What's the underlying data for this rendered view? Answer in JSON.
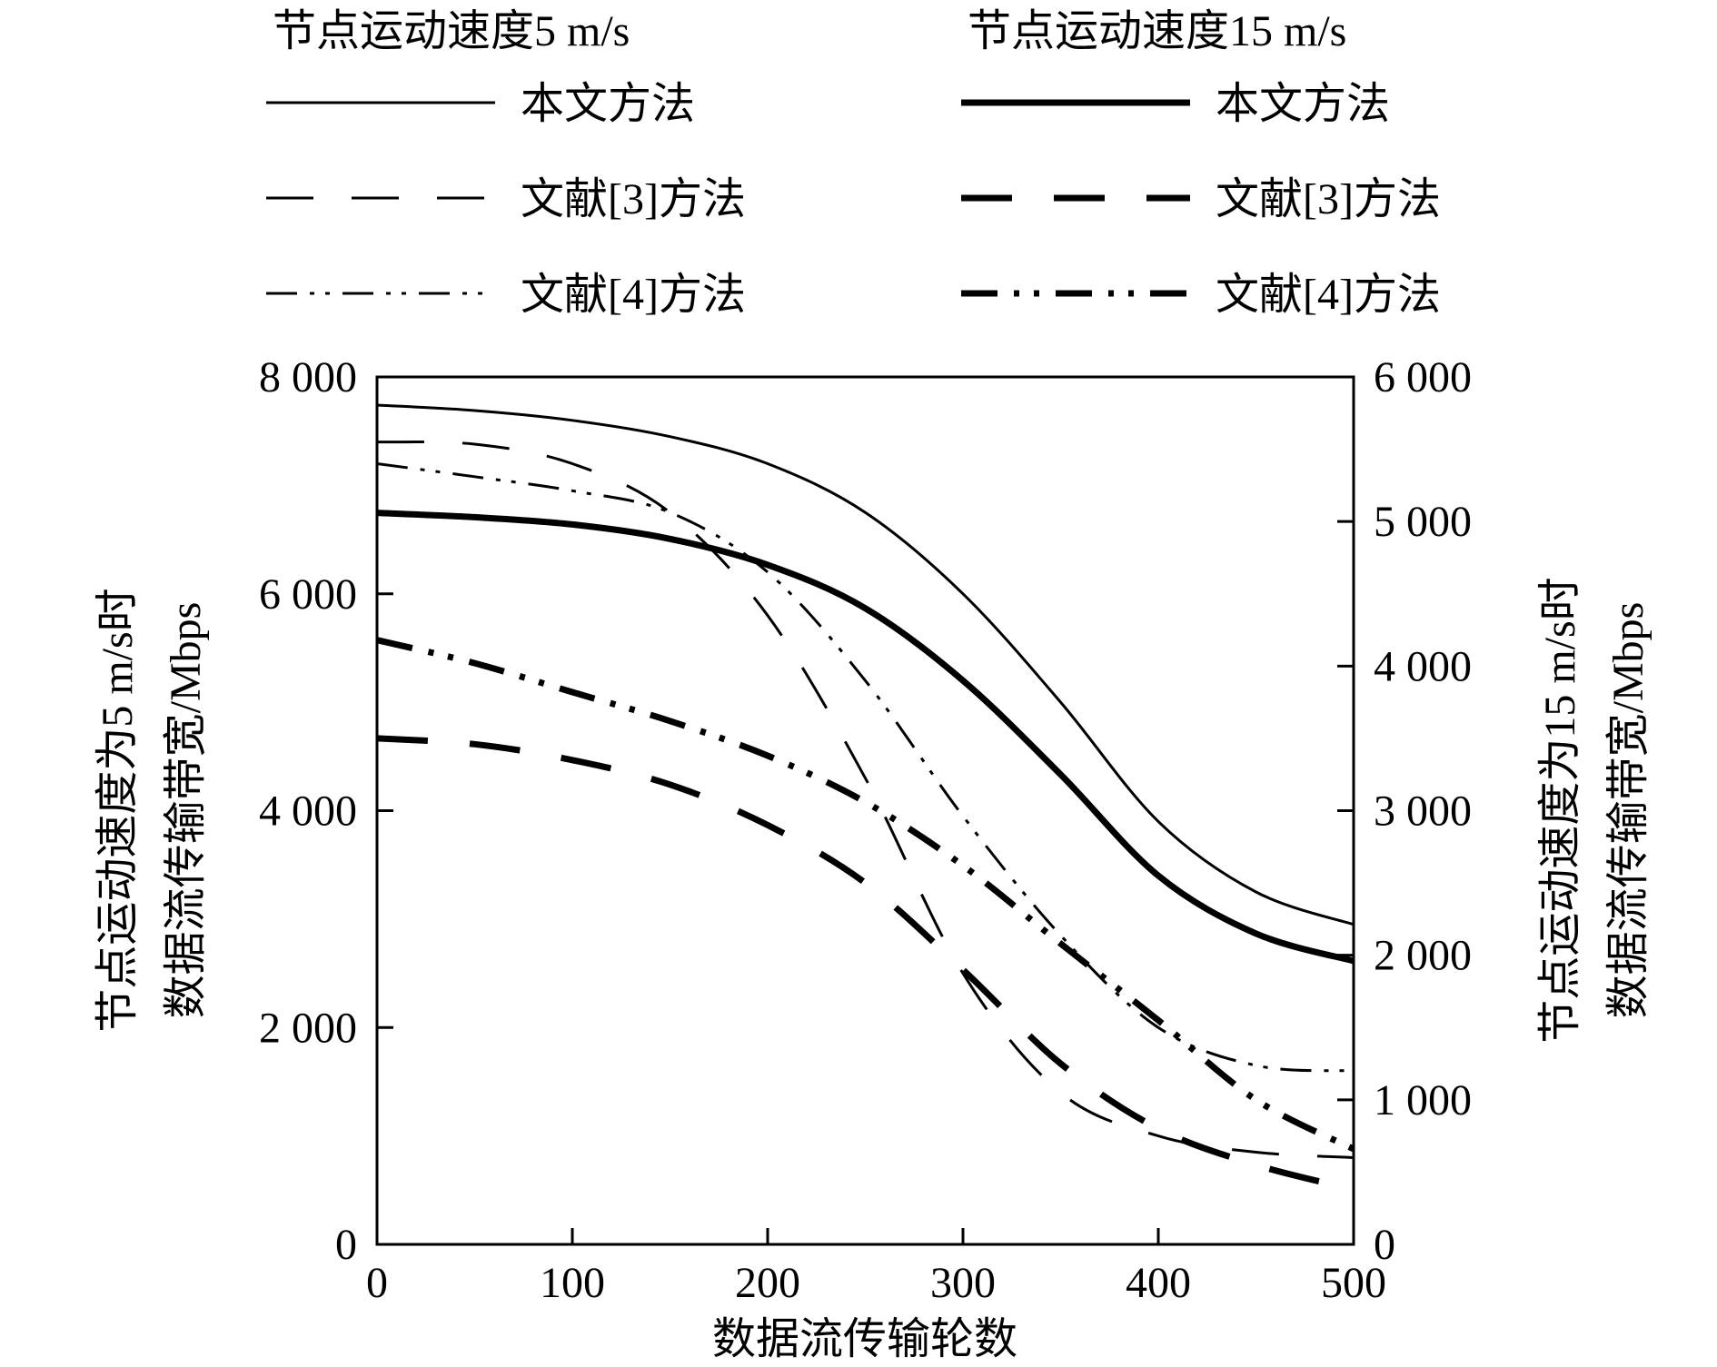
{
  "chart_data": {
    "type": "line",
    "title": "",
    "legend": {
      "groups": [
        {
          "title": "节点运动速度5 m/s",
          "position": "top-left",
          "entries": [
            "本文方法",
            "文献[3]方法",
            "文献[4]方法"
          ]
        },
        {
          "title": "节点运动速度15 m/s",
          "position": "top-right",
          "entries": [
            "本文方法",
            "文献[3]方法",
            "文献[4]方法"
          ]
        }
      ]
    },
    "xlabel": "数据流传输轮数",
    "ylabel_left_line1": "节点运动速度为5 m/s时",
    "ylabel_left_line2": "数据流传输带宽/Mbps",
    "ylabel_right_line1": "节点运动速度为15 m/s时",
    "ylabel_right_line2": "数据流传输带宽/Mbps",
    "xlim": [
      0,
      500
    ],
    "ylim_left": [
      0,
      8000
    ],
    "ylim_right": [
      0,
      6000
    ],
    "x_ticks": [
      0,
      100,
      200,
      300,
      400,
      500
    ],
    "x_tick_labels": [
      "0",
      "100",
      "200",
      "300",
      "400",
      "500"
    ],
    "y_ticks_left": [
      0,
      2000,
      4000,
      6000,
      8000
    ],
    "y_tick_labels_left": [
      "0",
      "2 000",
      "4 000",
      "6 000",
      "8 000"
    ],
    "y_ticks_right": [
      0,
      1000,
      2000,
      3000,
      4000,
      5000,
      6000
    ],
    "y_tick_labels_right": [
      "0",
      "1 000",
      "2 000",
      "3 000",
      "4 000",
      "5 000",
      "6 000"
    ],
    "grid": false,
    "series": [
      {
        "name": "本文方法",
        "group": "节点运动速度5 m/s",
        "axis": "left",
        "style": "solid",
        "weight": "thin",
        "x": [
          0,
          50,
          100,
          150,
          200,
          250,
          300,
          350,
          400,
          450,
          500
        ],
        "y": [
          7740,
          7690,
          7600,
          7450,
          7200,
          6750,
          6000,
          5000,
          3900,
          3250,
          2950
        ]
      },
      {
        "name": "文献[3]方法",
        "group": "节点运动速度5 m/s",
        "axis": "left",
        "style": "dashed",
        "weight": "thin",
        "x": [
          0,
          50,
          100,
          150,
          200,
          250,
          300,
          350,
          400,
          450,
          500
        ],
        "y": [
          7400,
          7380,
          7200,
          6750,
          5800,
          4300,
          2500,
          1400,
          1000,
          850,
          800
        ]
      },
      {
        "name": "文献[4]方法",
        "group": "节点运动速度5 m/s",
        "axis": "left",
        "style": "dash-dot-dot",
        "weight": "thin",
        "x": [
          0,
          50,
          100,
          150,
          200,
          250,
          300,
          350,
          400,
          450,
          500
        ],
        "y": [
          7200,
          7080,
          6950,
          6750,
          6200,
          5200,
          3950,
          2850,
          2000,
          1650,
          1600
        ]
      },
      {
        "name": "本文方法",
        "group": "节点运动速度15 m/s",
        "axis": "right",
        "style": "solid",
        "weight": "thick",
        "x": [
          0,
          50,
          100,
          150,
          200,
          250,
          300,
          350,
          400,
          450,
          500
        ],
        "y": [
          5060,
          5030,
          4980,
          4880,
          4700,
          4400,
          3900,
          3250,
          2550,
          2150,
          1960
        ]
      },
      {
        "name": "文献[3]方法",
        "group": "节点运动速度15 m/s",
        "axis": "right",
        "style": "dashed",
        "weight": "thick",
        "x": [
          0,
          50,
          100,
          150,
          200,
          250,
          300,
          350,
          400,
          450,
          500
        ],
        "y": [
          3500,
          3460,
          3350,
          3180,
          2900,
          2500,
          1900,
          1250,
          800,
          550,
          380
        ]
      },
      {
        "name": "文献[4]方法",
        "group": "节点运动速度15 m/s",
        "axis": "right",
        "style": "dash-dot-dot",
        "weight": "thick",
        "x": [
          0,
          50,
          100,
          150,
          200,
          250,
          300,
          350,
          400,
          450,
          500
        ],
        "y": [
          4180,
          4020,
          3820,
          3620,
          3380,
          3060,
          2620,
          2080,
          1550,
          1000,
          660
        ]
      }
    ]
  }
}
